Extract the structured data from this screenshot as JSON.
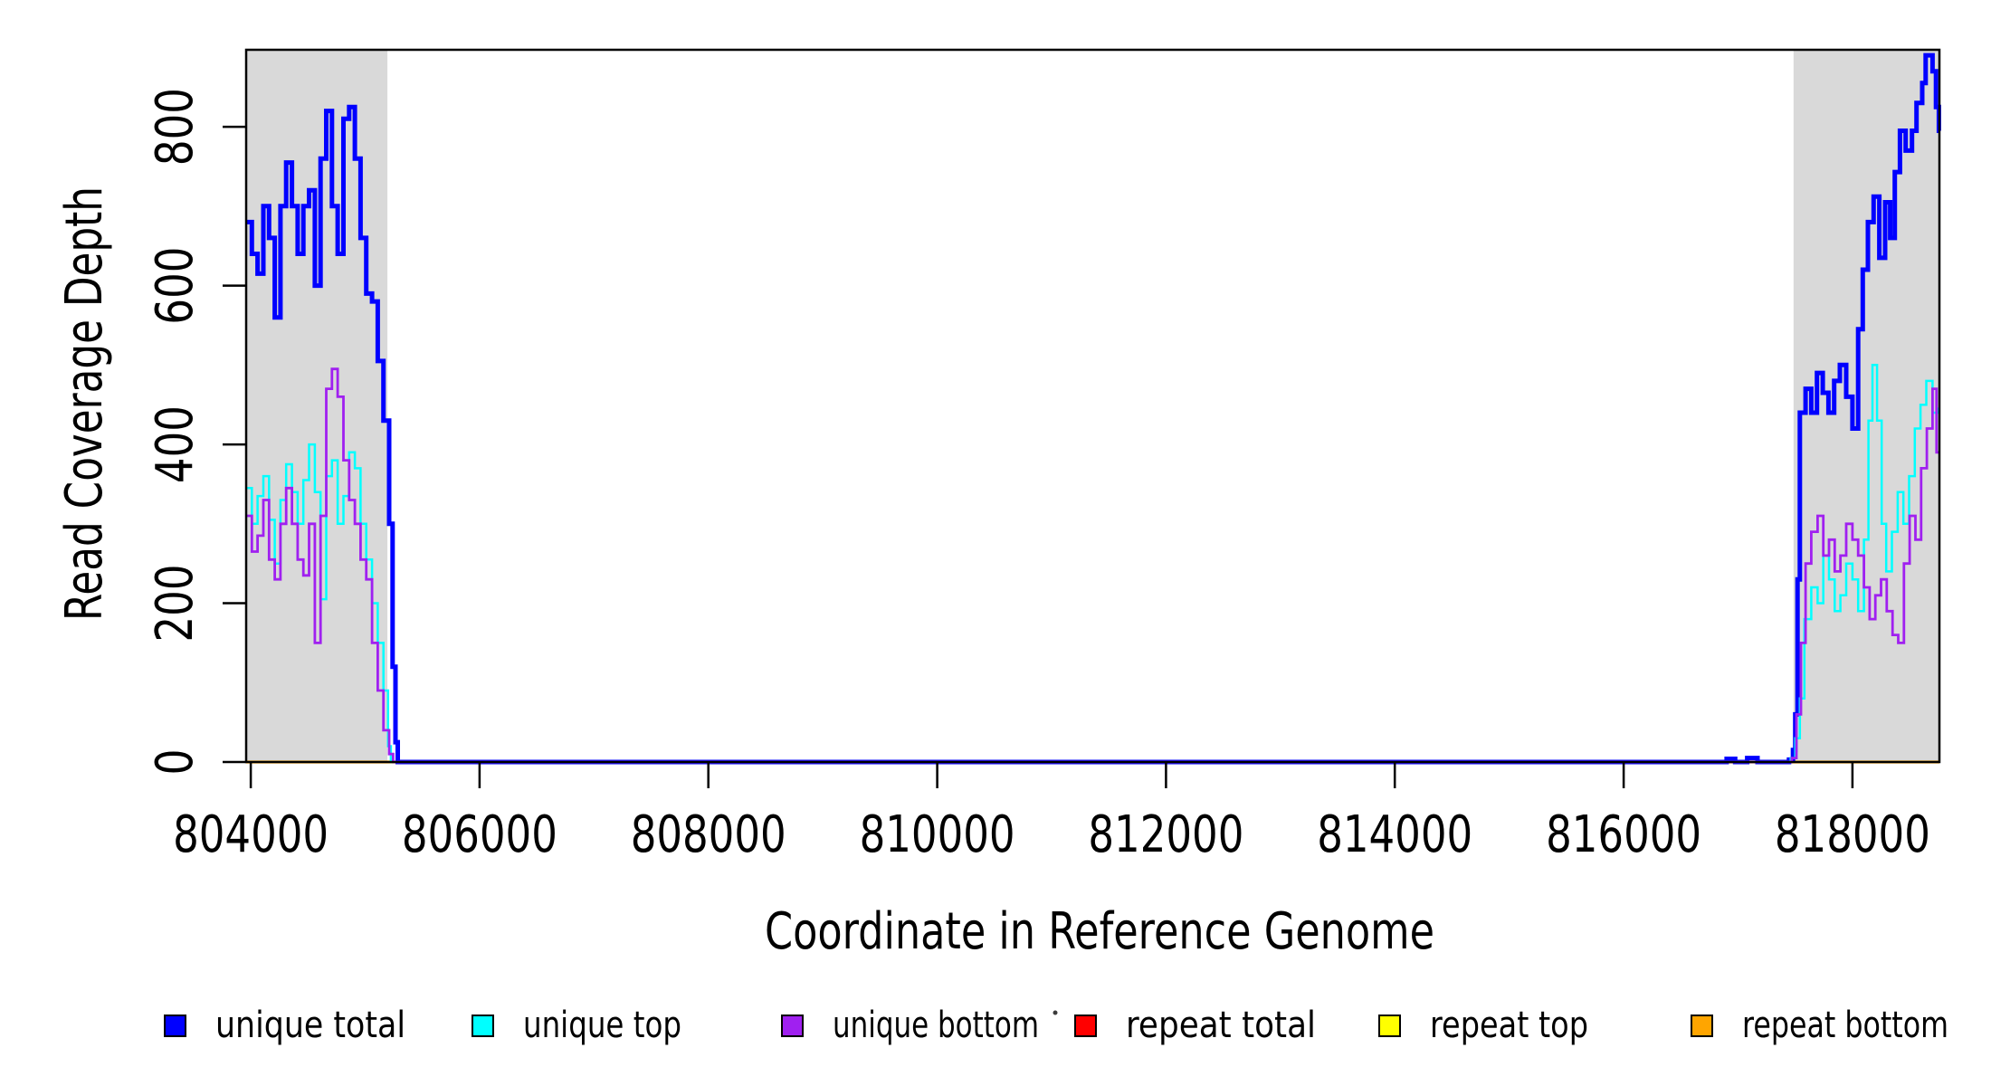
{
  "figure": {
    "background": "#FFFFFF",
    "frame_color": "#000000",
    "shade_color": "#D9D9D9"
  },
  "chart_data": {
    "type": "line",
    "subtype": "step-after-coverage",
    "title": "",
    "xlabel": "Coordinate in Reference Genome",
    "ylabel": "Read Coverage Depth",
    "xlim": [
      803960,
      818760
    ],
    "ylim": [
      0,
      897
    ],
    "grid": false,
    "x_ticks": [
      {
        "value": 804000,
        "label": "804000"
      },
      {
        "value": 806000,
        "label": "806000"
      },
      {
        "value": 808000,
        "label": "808000"
      },
      {
        "value": 810000,
        "label": "810000"
      },
      {
        "value": 812000,
        "label": "812000"
      },
      {
        "value": 814000,
        "label": "814000"
      },
      {
        "value": 816000,
        "label": "816000"
      },
      {
        "value": 818000,
        "label": "818000"
      }
    ],
    "y_ticks": [
      {
        "value": 0,
        "label": "0"
      },
      {
        "value": 200,
        "label": "200"
      },
      {
        "value": 400,
        "label": "400"
      },
      {
        "value": 600,
        "label": "600"
      },
      {
        "value": 800,
        "label": "800"
      }
    ],
    "shaded_regions": [
      {
        "x0": 803960,
        "x1": 805195
      },
      {
        "x0": 817485,
        "x1": 818760
      }
    ],
    "series": [
      {
        "name": "repeat total",
        "color": "#FF0000",
        "width": 3,
        "points": [
          [
            803960,
            0
          ],
          [
            818755,
            0
          ]
        ]
      },
      {
        "name": "repeat top",
        "color": "#FFFF00",
        "width": 3,
        "points": [
          [
            803960,
            0
          ],
          [
            818755,
            0
          ]
        ]
      },
      {
        "name": "repeat bottom",
        "color": "#FFA500",
        "width": 3.2,
        "points": [
          [
            803960,
            0
          ],
          [
            818755,
            0
          ]
        ]
      },
      {
        "name": "unique total",
        "color": "#0000FF",
        "width": 5,
        "points": [
          [
            803960,
            680
          ],
          [
            804010,
            640
          ],
          [
            804060,
            615
          ],
          [
            804110,
            700
          ],
          [
            804160,
            660
          ],
          [
            804210,
            560
          ],
          [
            804260,
            700
          ],
          [
            804310,
            755
          ],
          [
            804360,
            700
          ],
          [
            804410,
            640
          ],
          [
            804460,
            700
          ],
          [
            804510,
            720
          ],
          [
            804560,
            600
          ],
          [
            804610,
            760
          ],
          [
            804660,
            820
          ],
          [
            804710,
            700
          ],
          [
            804760,
            640
          ],
          [
            804810,
            810
          ],
          [
            804860,
            825
          ],
          [
            804910,
            760
          ],
          [
            804960,
            660
          ],
          [
            805010,
            590
          ],
          [
            805060,
            580
          ],
          [
            805110,
            505
          ],
          [
            805160,
            430
          ],
          [
            805210,
            300
          ],
          [
            805240,
            120
          ],
          [
            805265,
            25
          ],
          [
            805285,
            0
          ],
          [
            816900,
            4
          ],
          [
            816975,
            0
          ],
          [
            817080,
            5
          ],
          [
            817170,
            0
          ],
          [
            817445,
            3
          ],
          [
            817480,
            15
          ],
          [
            817500,
            60
          ],
          [
            817520,
            230
          ],
          [
            817540,
            440
          ],
          [
            817590,
            470
          ],
          [
            817640,
            440
          ],
          [
            817690,
            490
          ],
          [
            817740,
            465
          ],
          [
            817790,
            440
          ],
          [
            817840,
            480
          ],
          [
            817890,
            500
          ],
          [
            817945,
            460
          ],
          [
            818000,
            420
          ],
          [
            818050,
            545
          ],
          [
            818090,
            620
          ],
          [
            818135,
            680
          ],
          [
            818185,
            712
          ],
          [
            818235,
            635
          ],
          [
            818285,
            705
          ],
          [
            818330,
            660
          ],
          [
            818370,
            743
          ],
          [
            818415,
            795
          ],
          [
            818465,
            770
          ],
          [
            818520,
            795
          ],
          [
            818560,
            830
          ],
          [
            818610,
            855
          ],
          [
            818640,
            890
          ],
          [
            818700,
            870
          ],
          [
            818730,
            825
          ],
          [
            818755,
            795
          ]
        ]
      },
      {
        "name": "unique top",
        "color": "#00FFFF",
        "width": 2.5,
        "points": [
          [
            803960,
            345
          ],
          [
            804010,
            300
          ],
          [
            804060,
            335
          ],
          [
            804110,
            360
          ],
          [
            804160,
            305
          ],
          [
            804210,
            250
          ],
          [
            804260,
            330
          ],
          [
            804310,
            375
          ],
          [
            804360,
            340
          ],
          [
            804410,
            300
          ],
          [
            804460,
            355
          ],
          [
            804510,
            400
          ],
          [
            804560,
            340
          ],
          [
            804610,
            205
          ],
          [
            804660,
            360
          ],
          [
            804710,
            380
          ],
          [
            804760,
            300
          ],
          [
            804810,
            335
          ],
          [
            804860,
            390
          ],
          [
            804910,
            370
          ],
          [
            804960,
            300
          ],
          [
            805010,
            255
          ],
          [
            805060,
            200
          ],
          [
            805110,
            150
          ],
          [
            805160,
            90
          ],
          [
            805200,
            20
          ],
          [
            805225,
            0
          ],
          [
            817460,
            5
          ],
          [
            817500,
            30
          ],
          [
            817540,
            80
          ],
          [
            817580,
            180
          ],
          [
            817640,
            220
          ],
          [
            817695,
            200
          ],
          [
            817745,
            260
          ],
          [
            817795,
            230
          ],
          [
            817845,
            190
          ],
          [
            817895,
            210
          ],
          [
            817945,
            250
          ],
          [
            818000,
            230
          ],
          [
            818050,
            190
          ],
          [
            818100,
            280
          ],
          [
            818140,
            430
          ],
          [
            818175,
            500
          ],
          [
            818215,
            430
          ],
          [
            818255,
            300
          ],
          [
            818295,
            240
          ],
          [
            818345,
            290
          ],
          [
            818395,
            340
          ],
          [
            818445,
            300
          ],
          [
            818495,
            360
          ],
          [
            818545,
            420
          ],
          [
            818595,
            450
          ],
          [
            818645,
            480
          ],
          [
            818700,
            440
          ],
          [
            818755,
            445
          ]
        ]
      },
      {
        "name": "unique bottom",
        "color": "#A020F0",
        "width": 2.8,
        "points": [
          [
            803960,
            310
          ],
          [
            804010,
            265
          ],
          [
            804060,
            285
          ],
          [
            804110,
            330
          ],
          [
            804160,
            255
          ],
          [
            804210,
            230
          ],
          [
            804260,
            300
          ],
          [
            804310,
            345
          ],
          [
            804360,
            300
          ],
          [
            804410,
            255
          ],
          [
            804460,
            235
          ],
          [
            804510,
            300
          ],
          [
            804560,
            150
          ],
          [
            804610,
            310
          ],
          [
            804660,
            470
          ],
          [
            804710,
            495
          ],
          [
            804760,
            460
          ],
          [
            804810,
            380
          ],
          [
            804860,
            330
          ],
          [
            804910,
            300
          ],
          [
            804960,
            255
          ],
          [
            805010,
            230
          ],
          [
            805060,
            150
          ],
          [
            805110,
            90
          ],
          [
            805160,
            40
          ],
          [
            805210,
            10
          ],
          [
            805245,
            0
          ],
          [
            817470,
            5
          ],
          [
            817510,
            60
          ],
          [
            817550,
            150
          ],
          [
            817590,
            250
          ],
          [
            817640,
            290
          ],
          [
            817695,
            310
          ],
          [
            817745,
            260
          ],
          [
            817795,
            280
          ],
          [
            817845,
            240
          ],
          [
            817895,
            260
          ],
          [
            817945,
            300
          ],
          [
            818000,
            280
          ],
          [
            818050,
            260
          ],
          [
            818100,
            220
          ],
          [
            818150,
            180
          ],
          [
            818200,
            210
          ],
          [
            818250,
            230
          ],
          [
            818300,
            190
          ],
          [
            818350,
            160
          ],
          [
            818400,
            150
          ],
          [
            818450,
            250
          ],
          [
            818500,
            310
          ],
          [
            818550,
            280
          ],
          [
            818600,
            370
          ],
          [
            818650,
            420
          ],
          [
            818700,
            470
          ],
          [
            818735,
            390
          ],
          [
            818755,
            390
          ]
        ]
      }
    ],
    "legend_position": "bottom"
  },
  "legend": {
    "items": [
      {
        "label": "unique total",
        "color": "#0000FF"
      },
      {
        "label": "unique top",
        "color": "#00FFFF"
      },
      {
        "label": "unique bottom",
        "color": "#A020F0"
      },
      {
        "label": "repeat total",
        "color": "#FF0000"
      },
      {
        "label": "repeat top",
        "color": "#FFFF00"
      },
      {
        "label": "repeat bottom",
        "color": "#FFA500"
      }
    ]
  }
}
